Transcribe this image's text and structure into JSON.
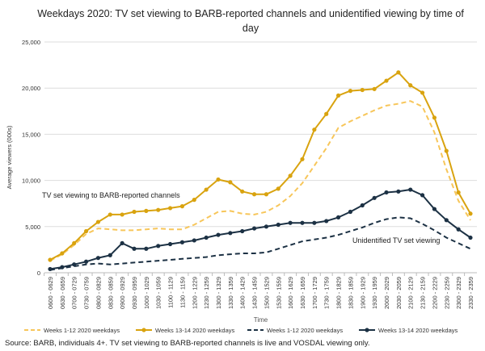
{
  "chart_data": {
    "type": "line",
    "title": "Weekdays 2020: TV set viewing to BARB-reported channels and unidentified viewing by time of day",
    "xlabel": "Time",
    "ylabel": "Average viewers (000s)",
    "ylim": [
      0,
      25000
    ],
    "yticks": [
      "0",
      "5,000",
      "10,000",
      "15,000",
      "20,000",
      "25,000"
    ],
    "grid": true,
    "legend_position": "bottom",
    "categories": [
      "0600 - 0629",
      "0630 - 0659",
      "0700 - 0729",
      "0730 - 0759",
      "0800 - 0829",
      "0830 - 0859",
      "0900 - 0929",
      "0930 - 0959",
      "1000 - 1029",
      "1030 - 1059",
      "1100 - 1129",
      "1130 - 1159",
      "1200 - 1229",
      "1230 - 1259",
      "1300 - 1329",
      "1330 - 1359",
      "1400 - 1429",
      "1430 - 1459",
      "1500 - 1529",
      "1530 - 1559",
      "1600 - 1629",
      "1630 - 1659",
      "1700 - 1729",
      "1730 - 1759",
      "1800 - 1829",
      "1830 - 1859",
      "1900 - 1929",
      "1930 - 1959",
      "2000 - 2029",
      "2030 - 2059",
      "2100 - 2129",
      "2130 - 2159",
      "2200 - 2229",
      "2230 - 2259",
      "2300 - 2329",
      "2330 - 2359"
    ],
    "series": [
      {
        "name": "Weeks 1-12 2020 weekdays",
        "color": "#f7c65a",
        "style": "dashed",
        "values": [
          1300,
          2000,
          3000,
          4200,
          4800,
          4700,
          4600,
          4600,
          4700,
          4800,
          4700,
          4700,
          5200,
          5900,
          6600,
          6700,
          6400,
          6300,
          6600,
          7300,
          8300,
          9700,
          11600,
          13500,
          15700,
          16400,
          17000,
          17600,
          18100,
          18300,
          18600,
          18000,
          15200,
          11200,
          7800,
          5700
        ]
      },
      {
        "name": "Weeks 13-14 2020 weekdays",
        "color": "#d9a30f",
        "style": "solid-marker",
        "values": [
          1400,
          2100,
          3200,
          4500,
          5500,
          6300,
          6300,
          6600,
          6700,
          6800,
          7000,
          7200,
          7900,
          9000,
          10100,
          9800,
          8800,
          8500,
          8500,
          9100,
          10500,
          12300,
          15500,
          17200,
          19200,
          19700,
          19800,
          19900,
          20800,
          21700,
          20300,
          19500,
          16800,
          13200,
          8700,
          6400
        ]
      },
      {
        "name": "Weeks 1-12 2020 weekdays",
        "color": "#1c3144",
        "style": "dashed",
        "values": [
          300,
          500,
          700,
          900,
          1000,
          900,
          1000,
          1100,
          1200,
          1300,
          1400,
          1500,
          1600,
          1700,
          1900,
          2000,
          2100,
          2100,
          2200,
          2600,
          3000,
          3400,
          3600,
          3800,
          4100,
          4500,
          4900,
          5400,
          5800,
          6000,
          5900,
          5300,
          4600,
          3800,
          3200,
          2600
        ]
      },
      {
        "name": "Weeks 13-14 2020 weekdays",
        "color": "#1c3144",
        "style": "solid-marker",
        "values": [
          400,
          600,
          900,
          1200,
          1600,
          1900,
          3200,
          2600,
          2600,
          2900,
          3100,
          3300,
          3500,
          3800,
          4100,
          4300,
          4500,
          4800,
          5000,
          5200,
          5400,
          5400,
          5400,
          5600,
          6000,
          6600,
          7300,
          8100,
          8700,
          8800,
          9000,
          8400,
          6900,
          5700,
          4700,
          3800
        ]
      }
    ],
    "annotations": [
      "TV set viewing to BARB-reported channels",
      "Unidentified TV set viewing"
    ]
  },
  "source": "Source: BARB, individuals 4+. TV set viewing to BARB-reported channels is live and VOSDAL viewing only."
}
